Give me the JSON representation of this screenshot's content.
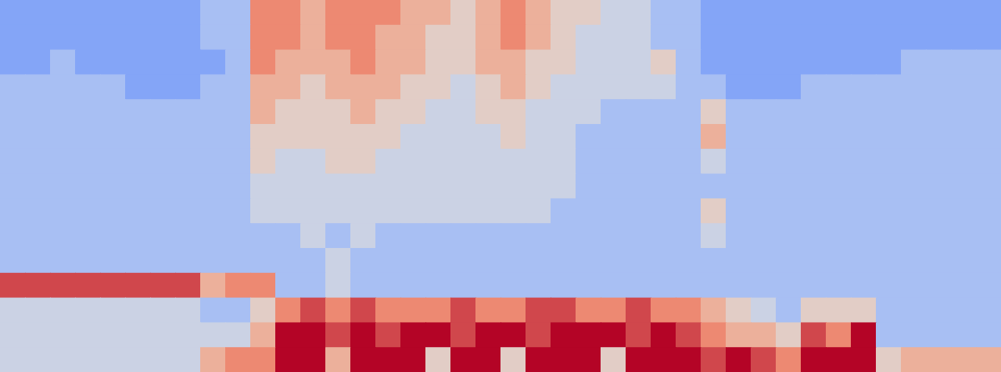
{
  "chart_data": {
    "type": "heatmap",
    "tick_labels": false,
    "xlim": [
      0,
      40
    ],
    "ylim": [
      0,
      15
    ],
    "zlim": [
      0,
      9
    ],
    "cells": [
      [
        2,
        2,
        2,
        2,
        2,
        2,
        2,
        2,
        3,
        3,
        7,
        7,
        6,
        7,
        7,
        7,
        6,
        6,
        5,
        6,
        7,
        6,
        5,
        5,
        4,
        4,
        3,
        3,
        2,
        2,
        2,
        2,
        2,
        2,
        2,
        2,
        2,
        2,
        2,
        2
      ],
      [
        2,
        2,
        2,
        2,
        2,
        2,
        2,
        2,
        3,
        3,
        7,
        7,
        6,
        7,
        7,
        6,
        6,
        5,
        5,
        6,
        7,
        6,
        5,
        4,
        4,
        4,
        3,
        3,
        2,
        2,
        2,
        2,
        2,
        2,
        2,
        2,
        2,
        2,
        2,
        2
      ],
      [
        2,
        2,
        3,
        2,
        2,
        2,
        2,
        2,
        2,
        3,
        7,
        6,
        6,
        6,
        7,
        6,
        6,
        5,
        5,
        6,
        6,
        5,
        5,
        4,
        4,
        4,
        5,
        3,
        2,
        2,
        2,
        2,
        2,
        2,
        2,
        2,
        3,
        3,
        3,
        3
      ],
      [
        3,
        3,
        3,
        3,
        3,
        2,
        2,
        2,
        3,
        3,
        6,
        6,
        5,
        6,
        6,
        6,
        5,
        5,
        4,
        5,
        6,
        5,
        4,
        4,
        4,
        4,
        4,
        3,
        3,
        2,
        2,
        2,
        3,
        3,
        3,
        3,
        3,
        3,
        3,
        3
      ],
      [
        3,
        3,
        3,
        3,
        3,
        3,
        3,
        3,
        3,
        3,
        6,
        5,
        5,
        5,
        6,
        5,
        5,
        4,
        4,
        5,
        5,
        4,
        4,
        4,
        3,
        3,
        3,
        3,
        5,
        3,
        3,
        3,
        3,
        3,
        3,
        3,
        3,
        3,
        3,
        3
      ],
      [
        3,
        3,
        3,
        3,
        3,
        3,
        3,
        3,
        3,
        3,
        5,
        5,
        5,
        5,
        5,
        5,
        4,
        4,
        4,
        4,
        5,
        4,
        4,
        3,
        3,
        3,
        3,
        3,
        6,
        3,
        3,
        3,
        3,
        3,
        3,
        3,
        3,
        3,
        3,
        3
      ],
      [
        3,
        3,
        3,
        3,
        3,
        3,
        3,
        3,
        3,
        3,
        5,
        4,
        4,
        5,
        5,
        4,
        4,
        4,
        4,
        4,
        4,
        4,
        4,
        3,
        3,
        3,
        3,
        3,
        4,
        3,
        3,
        3,
        3,
        3,
        3,
        3,
        3,
        3,
        3,
        3
      ],
      [
        3,
        3,
        3,
        3,
        3,
        3,
        3,
        3,
        3,
        3,
        4,
        4,
        4,
        4,
        4,
        4,
        4,
        4,
        4,
        4,
        4,
        4,
        4,
        3,
        3,
        3,
        3,
        3,
        3,
        3,
        3,
        3,
        3,
        3,
        3,
        3,
        3,
        3,
        3,
        3
      ],
      [
        3,
        3,
        3,
        3,
        3,
        3,
        3,
        3,
        3,
        3,
        4,
        4,
        4,
        4,
        4,
        4,
        4,
        4,
        4,
        4,
        4,
        4,
        3,
        3,
        3,
        3,
        3,
        3,
        5,
        3,
        3,
        3,
        3,
        3,
        3,
        3,
        3,
        3,
        3,
        3
      ],
      [
        3,
        3,
        3,
        3,
        3,
        3,
        3,
        3,
        3,
        3,
        3,
        3,
        4,
        3,
        4,
        3,
        3,
        3,
        3,
        3,
        3,
        3,
        3,
        3,
        3,
        3,
        3,
        3,
        4,
        3,
        3,
        3,
        3,
        3,
        3,
        3,
        3,
        3,
        3,
        3
      ],
      [
        3,
        3,
        3,
        3,
        3,
        3,
        3,
        3,
        3,
        3,
        3,
        3,
        3,
        4,
        3,
        3,
        3,
        3,
        3,
        3,
        3,
        3,
        3,
        3,
        3,
        3,
        3,
        3,
        3,
        3,
        3,
        3,
        3,
        3,
        3,
        3,
        3,
        3,
        3,
        3
      ],
      [
        8,
        8,
        8,
        8,
        8,
        8,
        8,
        8,
        6,
        7,
        7,
        3,
        3,
        4,
        3,
        3,
        3,
        3,
        3,
        3,
        3,
        3,
        3,
        3,
        3,
        3,
        3,
        3,
        3,
        3,
        3,
        3,
        3,
        3,
        3,
        3,
        3,
        3,
        3,
        3
      ],
      [
        4,
        4,
        4,
        4,
        4,
        4,
        4,
        4,
        3,
        3,
        5,
        7,
        8,
        7,
        8,
        7,
        7,
        7,
        8,
        7,
        7,
        8,
        8,
        7,
        7,
        8,
        7,
        7,
        6,
        5,
        4,
        3,
        5,
        5,
        5,
        3,
        3,
        3,
        3,
        3
      ],
      [
        4,
        4,
        4,
        4,
        4,
        4,
        4,
        4,
        4,
        4,
        6,
        9,
        9,
        8,
        9,
        8,
        9,
        9,
        8,
        9,
        9,
        8,
        9,
        9,
        9,
        8,
        9,
        8,
        7,
        6,
        6,
        5,
        8,
        7,
        9,
        3,
        3,
        3,
        3,
        3
      ],
      [
        4,
        4,
        4,
        4,
        4,
        4,
        4,
        4,
        6,
        7,
        7,
        9,
        9,
        6,
        9,
        9,
        9,
        5,
        9,
        9,
        5,
        9,
        9,
        9,
        5,
        9,
        9,
        9,
        8,
        9,
        8,
        7,
        9,
        9,
        9,
        5,
        6,
        6,
        6,
        6
      ]
    ]
  }
}
